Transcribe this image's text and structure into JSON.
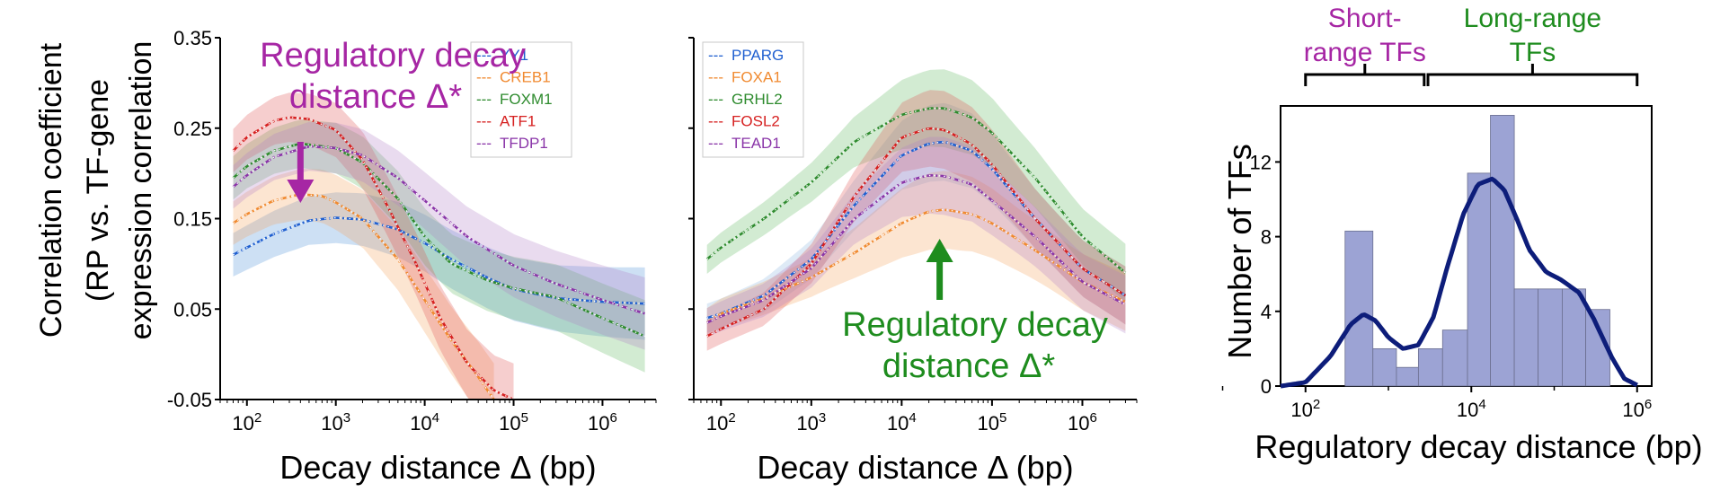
{
  "y_title_lines": [
    "Correlation coefficient",
    "(RP vs. TF-gene",
    "expression correlation"
  ],
  "chart_data": [
    {
      "type": "line",
      "panel": "left",
      "xscale": "log",
      "xlabel": "Decay distance Δ (bp)",
      "xlim": [
        50,
        4000000
      ],
      "ylim": [
        -0.05,
        0.35
      ],
      "yticks": [
        "0.35",
        "0.25",
        "0.15",
        "0.05",
        "-0.05"
      ],
      "xticks": [
        "10^2",
        "10^3",
        "10^4",
        "10^5",
        "10^6"
      ],
      "annotation": "Regulatory decay distance Δ*",
      "annotation_lines": [
        "Regulatory decay",
        "distance Δ*"
      ],
      "annotation_color": "#a626a4",
      "arrow_direction": "down",
      "arrow_x": 400,
      "legend": {
        "placement": "top-right"
      },
      "series": [
        {
          "name": "YY1",
          "color": "#1f5fd0",
          "band_color": "#4a90d9",
          "x": [
            70,
            100,
            200,
            500,
            1000,
            2000,
            5000,
            10000,
            20000,
            50000,
            100000,
            300000,
            1000000,
            3000000
          ],
          "y": [
            0.11,
            0.118,
            0.133,
            0.148,
            0.151,
            0.149,
            0.138,
            0.123,
            0.105,
            0.085,
            0.072,
            0.062,
            0.058,
            0.056
          ]
        },
        {
          "name": "CREB1",
          "color": "#f08a30",
          "band_color": "#f5a05a",
          "x": [
            70,
            100,
            200,
            400,
            700,
            1000,
            2000,
            5000,
            10000,
            20000,
            40000,
            60000
          ],
          "y": [
            0.145,
            0.155,
            0.17,
            0.177,
            0.175,
            0.168,
            0.15,
            0.105,
            0.06,
            0.015,
            -0.025,
            -0.05
          ]
        },
        {
          "name": "FOXM1",
          "color": "#2e8b2e",
          "band_color": "#5cb85c",
          "x": [
            70,
            100,
            200,
            400,
            1000,
            2000,
            5000,
            10000,
            20000,
            50000,
            100000,
            300000,
            1000000,
            3000000
          ],
          "y": [
            0.195,
            0.208,
            0.225,
            0.233,
            0.228,
            0.212,
            0.172,
            0.13,
            0.1,
            0.082,
            0.073,
            0.063,
            0.04,
            0.02
          ]
        },
        {
          "name": "ATF1",
          "color": "#d62020",
          "band_color": "#e05050",
          "x": [
            70,
            100,
            200,
            300,
            500,
            1000,
            2000,
            4000,
            8000,
            15000,
            30000,
            60000,
            100000
          ],
          "y": [
            0.225,
            0.24,
            0.258,
            0.262,
            0.26,
            0.248,
            0.215,
            0.16,
            0.1,
            0.04,
            -0.01,
            -0.04,
            -0.05
          ]
        },
        {
          "name": "TFDP1",
          "color": "#8a35a8",
          "band_color": "#b07cc6",
          "x": [
            70,
            100,
            200,
            500,
            1000,
            2000,
            5000,
            10000,
            30000,
            100000,
            300000,
            1000000,
            3000000
          ],
          "y": [
            0.185,
            0.198,
            0.218,
            0.23,
            0.228,
            0.22,
            0.195,
            0.17,
            0.13,
            0.098,
            0.078,
            0.06,
            0.045
          ]
        }
      ]
    },
    {
      "type": "line",
      "panel": "middle",
      "xscale": "log",
      "xlabel": "Decay distance Δ (bp)",
      "xlim": [
        50,
        4000000
      ],
      "ylim": [
        -0.05,
        0.35
      ],
      "xticks": [
        "10^2",
        "10^3",
        "10^4",
        "10^5",
        "10^6"
      ],
      "annotation": "Regulatory decay distance Δ*",
      "annotation_lines": [
        "Regulatory decay",
        "distance Δ*"
      ],
      "annotation_color": "#1e8c1e",
      "arrow_direction": "up",
      "arrow_x": 20000,
      "legend": {
        "placement": "top-left"
      },
      "series": [
        {
          "name": "PPARG",
          "color": "#1f5fd0",
          "band_color": "#8ab4e0",
          "x": [
            70,
            100,
            300,
            1000,
            3000,
            10000,
            20000,
            30000,
            60000,
            100000,
            300000,
            1000000,
            3000000
          ],
          "y": [
            0.04,
            0.045,
            0.065,
            0.105,
            0.165,
            0.22,
            0.233,
            0.235,
            0.225,
            0.205,
            0.15,
            0.095,
            0.065
          ]
        },
        {
          "name": "FOXA1",
          "color": "#f08a30",
          "band_color": "#f5a05a",
          "x": [
            70,
            100,
            300,
            1000,
            3000,
            10000,
            20000,
            30000,
            60000,
            100000,
            300000,
            1000000,
            3000000
          ],
          "y": [
            0.035,
            0.045,
            0.062,
            0.085,
            0.112,
            0.145,
            0.158,
            0.16,
            0.155,
            0.145,
            0.115,
            0.08,
            0.058
          ]
        },
        {
          "name": "GRHL2",
          "color": "#2e8b2e",
          "band_color": "#5cb85c",
          "x": [
            70,
            100,
            300,
            1000,
            3000,
            10000,
            20000,
            30000,
            60000,
            100000,
            300000,
            1000000,
            3000000
          ],
          "y": [
            0.105,
            0.118,
            0.15,
            0.19,
            0.235,
            0.265,
            0.272,
            0.272,
            0.262,
            0.245,
            0.195,
            0.13,
            0.09
          ]
        },
        {
          "name": "FOSL2",
          "color": "#d62020",
          "band_color": "#e05050",
          "x": [
            70,
            100,
            300,
            1000,
            3000,
            10000,
            20000,
            30000,
            60000,
            100000,
            300000,
            1000000,
            3000000
          ],
          "y": [
            0.02,
            0.028,
            0.05,
            0.1,
            0.175,
            0.24,
            0.25,
            0.248,
            0.232,
            0.21,
            0.15,
            0.095,
            0.065
          ]
        },
        {
          "name": "TEAD1",
          "color": "#8a35a8",
          "band_color": "#b07cc6",
          "x": [
            70,
            100,
            300,
            1000,
            3000,
            10000,
            20000,
            30000,
            60000,
            100000,
            300000,
            1000000,
            3000000
          ],
          "y": [
            0.035,
            0.042,
            0.06,
            0.095,
            0.15,
            0.19,
            0.198,
            0.197,
            0.188,
            0.17,
            0.13,
            0.08,
            0.055
          ]
        }
      ]
    },
    {
      "type": "bar",
      "panel": "right",
      "subtype": "histogram-with-density",
      "xscale": "log",
      "xlabel": "Regulatory decay distance (bp)",
      "ylabel": "Number of TFs",
      "xlim": [
        50,
        1500000
      ],
      "ylim": [
        0,
        15
      ],
      "yticks": [
        "0",
        "4",
        "8",
        "12"
      ],
      "xticks": [
        "10^2",
        "10^4",
        "10^6"
      ],
      "bins": [
        {
          "from": 300,
          "to": 650,
          "count": 8.3
        },
        {
          "from": 650,
          "to": 1250,
          "count": 2.0
        },
        {
          "from": 1250,
          "to": 2300,
          "count": 1.0
        },
        {
          "from": 2300,
          "to": 4500,
          "count": 2.0
        },
        {
          "from": 4500,
          "to": 9000,
          "count": 3.0
        },
        {
          "from": 9000,
          "to": 17000,
          "count": 11.4
        },
        {
          "from": 17000,
          "to": 33000,
          "count": 14.5
        },
        {
          "from": 33000,
          "to": 64000,
          "count": 5.2
        },
        {
          "from": 64000,
          "to": 125000,
          "count": 5.2
        },
        {
          "from": 125000,
          "to": 240000,
          "count": 5.2
        },
        {
          "from": 240000,
          "to": 470000,
          "count": 4.1
        }
      ],
      "density_curve": {
        "color": "#0d1d7a",
        "x": [
          50,
          100,
          200,
          350,
          500,
          700,
          1000,
          1500,
          2300,
          3500,
          5000,
          8000,
          12000,
          18000,
          25000,
          35000,
          50000,
          80000,
          120000,
          200000,
          300000,
          500000,
          700000,
          1000000
        ],
        "y": [
          0.0,
          0.2,
          1.6,
          3.3,
          3.85,
          3.5,
          2.6,
          2.0,
          2.2,
          3.7,
          6.2,
          9.2,
          10.8,
          11.1,
          10.5,
          9.0,
          7.3,
          6.1,
          5.7,
          5.0,
          3.6,
          1.5,
          0.4,
          0.05
        ]
      },
      "bar_color": "#9ca3d4",
      "groups": [
        {
          "label_lines": [
            "Short-",
            "range TFs"
          ],
          "color": "#a626a4",
          "from": 100,
          "to": 2700
        },
        {
          "label_lines": [
            "Long-range",
            "TFs"
          ],
          "color": "#1e8c1e",
          "from": 3000,
          "to": 1000000
        }
      ]
    }
  ]
}
